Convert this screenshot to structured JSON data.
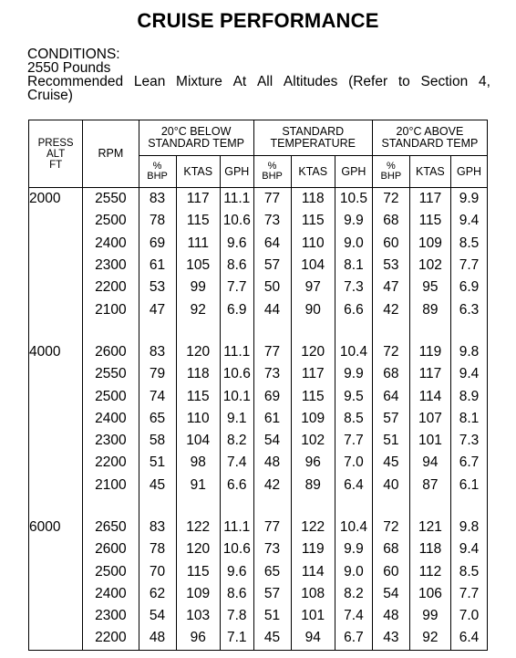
{
  "title": "CRUISE PERFORMANCE",
  "conditions": {
    "label": "CONDITIONS:",
    "weight": "2550 Pounds",
    "mixture_line1": "Recommended Lean Mixture At All Altitudes (Refer to Section 4,",
    "mixture_line2": "Cruise)"
  },
  "headers": {
    "press_alt_line1": "PRESS",
    "press_alt_line2": "ALT",
    "press_alt_line3": "FT",
    "rpm": "RPM",
    "groups": [
      {
        "line1": "20°C BELOW",
        "line2": "STANDARD TEMP"
      },
      {
        "line1": "STANDARD",
        "line2": "TEMPERATURE"
      },
      {
        "line1": "20°C ABOVE",
        "line2": "STANDARD TEMP"
      }
    ],
    "pct_top": "%",
    "pct_bottom": "BHP",
    "ktas": "KTAS",
    "gph": "GPH"
  },
  "altitude_blocks": [
    {
      "alt": "2000",
      "rows": [
        [
          "2550",
          "83",
          "117",
          "11.1",
          "77",
          "118",
          "10.5",
          "72",
          "117",
          "9.9"
        ],
        [
          "2500",
          "78",
          "115",
          "10.6",
          "73",
          "115",
          "9.9",
          "68",
          "115",
          "9.4"
        ],
        [
          "2400",
          "69",
          "111",
          "9.6",
          "64",
          "110",
          "9.0",
          "60",
          "109",
          "8.5"
        ],
        [
          "2300",
          "61",
          "105",
          "8.6",
          "57",
          "104",
          "8.1",
          "53",
          "102",
          "7.7"
        ],
        [
          "2200",
          "53",
          "99",
          "7.7",
          "50",
          "97",
          "7.3",
          "47",
          "95",
          "6.9"
        ],
        [
          "2100",
          "47",
          "92",
          "6.9",
          "44",
          "90",
          "6.6",
          "42",
          "89",
          "6.3"
        ]
      ]
    },
    {
      "alt": "4000",
      "rows": [
        [
          "2600",
          "83",
          "120",
          "11.1",
          "77",
          "120",
          "10.4",
          "72",
          "119",
          "9.8"
        ],
        [
          "2550",
          "79",
          "118",
          "10.6",
          "73",
          "117",
          "9.9",
          "68",
          "117",
          "9.4"
        ],
        [
          "2500",
          "74",
          "115",
          "10.1",
          "69",
          "115",
          "9.5",
          "64",
          "114",
          "8.9"
        ],
        [
          "2400",
          "65",
          "110",
          "9.1",
          "61",
          "109",
          "8.5",
          "57",
          "107",
          "8.1"
        ],
        [
          "2300",
          "58",
          "104",
          "8.2",
          "54",
          "102",
          "7.7",
          "51",
          "101",
          "7.3"
        ],
        [
          "2200",
          "51",
          "98",
          "7.4",
          "48",
          "96",
          "7.0",
          "45",
          "94",
          "6.7"
        ],
        [
          "2100",
          "45",
          "91",
          "6.6",
          "42",
          "89",
          "6.4",
          "40",
          "87",
          "6.1"
        ]
      ]
    },
    {
      "alt": "6000",
      "rows": [
        [
          "2650",
          "83",
          "122",
          "11.1",
          "77",
          "122",
          "10.4",
          "72",
          "121",
          "9.8"
        ],
        [
          "2600",
          "78",
          "120",
          "10.6",
          "73",
          "119",
          "9.9",
          "68",
          "118",
          "9.4"
        ],
        [
          "2500",
          "70",
          "115",
          "9.6",
          "65",
          "114",
          "9.0",
          "60",
          "112",
          "8.5"
        ],
        [
          "2400",
          "62",
          "109",
          "8.6",
          "57",
          "108",
          "8.2",
          "54",
          "106",
          "7.7"
        ],
        [
          "2300",
          "54",
          "103",
          "7.8",
          "51",
          "101",
          "7.4",
          "48",
          "99",
          "7.0"
        ],
        [
          "2200",
          "48",
          "96",
          "7.1",
          "45",
          "94",
          "6.7",
          "43",
          "92",
          "6.4"
        ]
      ]
    }
  ]
}
